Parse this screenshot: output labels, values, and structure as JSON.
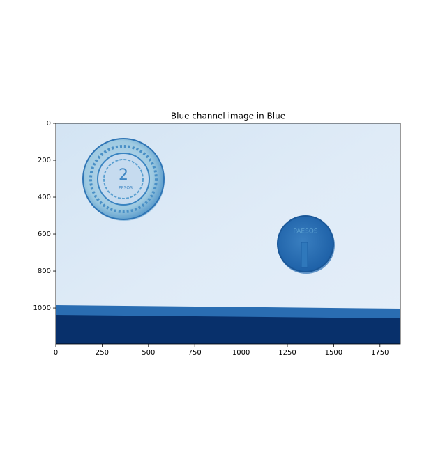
{
  "chart_data": {
    "type": "image",
    "title": "Blue channel image in Blue",
    "xlim": [
      0,
      1860
    ],
    "ylim": [
      1196,
      0
    ],
    "xticks": [
      0,
      250,
      500,
      750,
      1000,
      1250,
      1500,
      1750
    ],
    "yticks": [
      0,
      200,
      400,
      600,
      800,
      1000
    ]
  }
}
